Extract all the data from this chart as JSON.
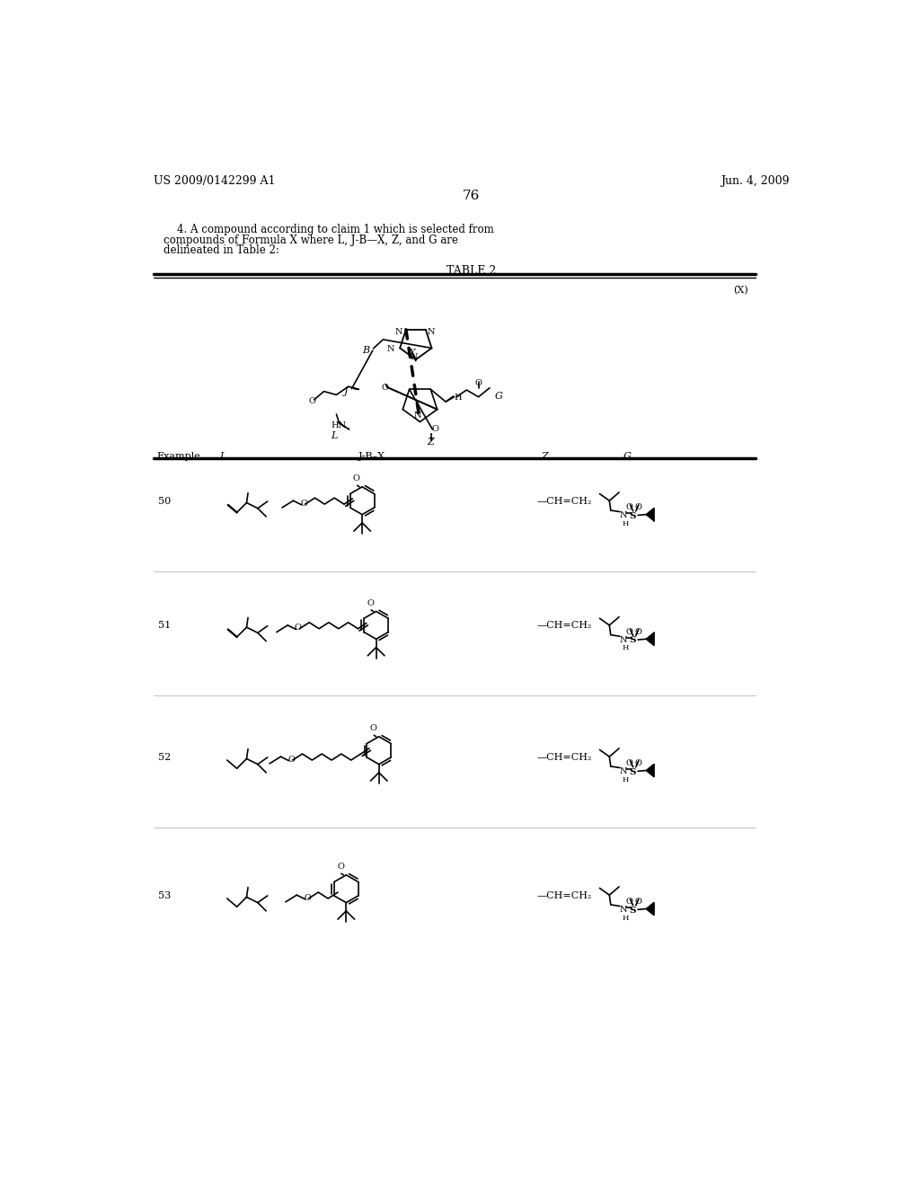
{
  "page_header_left": "US 2009/0142299 A1",
  "page_header_right": "Jun. 4, 2009",
  "page_number": "76",
  "claim_text_line1": "    4. A compound according to claim 1 which is selected from",
  "claim_text_line2": "compounds of Formula X where L, J-B—X, Z, and G are",
  "claim_text_line3": "delineated in Table 2:",
  "table_title": "TABLE 2",
  "formula_label": "(X)",
  "col_example": "Example",
  "col_L": "L",
  "col_JBX": "J-B–X",
  "col_Z": "Z",
  "col_G": "G",
  "examples": [
    "50",
    "51",
    "52",
    "53"
  ],
  "z_text": "—CH=CH₂",
  "background_color": "#ffffff",
  "text_color": "#000000"
}
